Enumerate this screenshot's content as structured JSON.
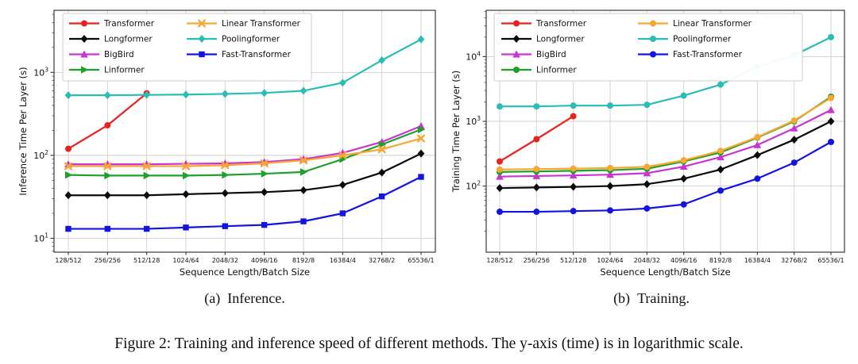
{
  "figure": {
    "subcaption_a_label": "(a)",
    "subcaption_a_text": "Inference.",
    "subcaption_b_label": "(b)",
    "subcaption_b_text": "Training.",
    "caption": "Figure 2: Training and inference speed of different methods. The y-axis (time) is in logarithmic scale."
  },
  "chart_data": [
    {
      "type": "line",
      "panel": "a",
      "xlabel": "Sequence Length/Batch Size",
      "ylabel": "Inference Time Per Layer (s)",
      "yscale": "log",
      "ylim": [
        6.8,
        5600
      ],
      "ytick_exponents": [
        1,
        2,
        3
      ],
      "grid": true,
      "legend_position": "upper-left",
      "categories": [
        "128/512",
        "256/256",
        "512/128",
        "1024/64",
        "2048/32",
        "4096/16",
        "8192/8",
        "16384/4",
        "32768/2",
        "65536/1"
      ],
      "series": [
        {
          "name": "Transformer",
          "color": "#e8221f",
          "marker": "circle",
          "values": [
            120,
            230,
            560
          ]
        },
        {
          "name": "Longformer",
          "color": "#0a0a0a",
          "marker": "diamond",
          "values": [
            33,
            33,
            33,
            34,
            35,
            36,
            38,
            44,
            62,
            105
          ]
        },
        {
          "name": "BigBird",
          "color": "#c935d1",
          "marker": "triangle",
          "values": [
            78,
            78,
            78,
            79,
            80,
            83,
            90,
            107,
            145,
            225
          ]
        },
        {
          "name": "Linformer",
          "color": "#1fa02a",
          "marker": "triangle-right",
          "values": [
            58,
            57,
            57,
            57,
            58,
            60,
            63,
            90,
            135,
            205
          ]
        },
        {
          "name": "Linear Transformer",
          "color": "#f8a832",
          "marker": "x",
          "values": [
            74,
            74,
            74,
            74,
            76,
            80,
            87,
            100,
            118,
            160
          ]
        },
        {
          "name": "Poolingformer",
          "color": "#29bdb4",
          "marker": "diamond",
          "values": [
            530,
            530,
            535,
            540,
            550,
            565,
            600,
            750,
            1400,
            2500
          ]
        },
        {
          "name": "Fast-Transformer",
          "color": "#1414e0",
          "marker": "square",
          "values": [
            13,
            13,
            13,
            13.5,
            14,
            14.5,
            16,
            20,
            32,
            55
          ]
        }
      ]
    },
    {
      "type": "line",
      "panel": "b",
      "xlabel": "Sequence Length/Batch Size",
      "ylabel": "Training Time Per Layer (s)",
      "yscale": "log",
      "ylim": [
        9.5,
        52000
      ],
      "ytick_exponents": [
        2,
        3,
        4
      ],
      "grid": true,
      "legend_position": "upper-left",
      "categories": [
        "128/512",
        "256/256",
        "512/128",
        "1024/64",
        "2048/32",
        "4096/16",
        "8192/8",
        "16384/4",
        "32768/2",
        "65536/1"
      ],
      "series": [
        {
          "name": "Transformer",
          "color": "#e8221f",
          "marker": "circle",
          "values": [
            240,
            530,
            1200
          ]
        },
        {
          "name": "Longformer",
          "color": "#0a0a0a",
          "marker": "diamond",
          "values": [
            93,
            95,
            97,
            100,
            107,
            130,
            180,
            300,
            520,
            1000
          ]
        },
        {
          "name": "BigBird",
          "color": "#c935d1",
          "marker": "triangle",
          "values": [
            140,
            143,
            146,
            150,
            158,
            200,
            280,
            430,
            780,
            1500
          ]
        },
        {
          "name": "Linformer",
          "color": "#1fa02a",
          "marker": "circle",
          "values": [
            165,
            168,
            172,
            176,
            185,
            240,
            330,
            560,
            1000,
            2400
          ]
        },
        {
          "name": "Linear Transformer",
          "color": "#f8a832",
          "marker": "circle",
          "values": [
            180,
            183,
            186,
            190,
            198,
            250,
            350,
            570,
            1030,
            2300
          ]
        },
        {
          "name": "Poolingformer",
          "color": "#29bdb4",
          "marker": "circle",
          "values": [
            1700,
            1700,
            1750,
            1750,
            1800,
            2500,
            3700,
            7000,
            10500,
            20000
          ]
        },
        {
          "name": "Fast-Transformer",
          "color": "#1414e0",
          "marker": "circle",
          "values": [
            40,
            40,
            41,
            42,
            45,
            52,
            85,
            130,
            230,
            480
          ]
        }
      ]
    }
  ]
}
